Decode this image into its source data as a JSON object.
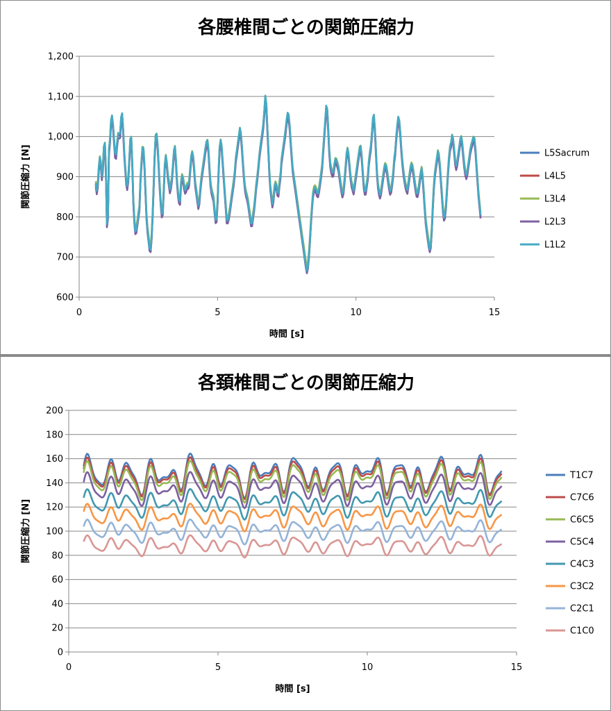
{
  "chart_data": [
    {
      "type": "line",
      "title": "各腰椎間ごとの関節圧縮力",
      "xlabel": "時間 [s]",
      "ylabel": "関節圧縮力 [N]",
      "xlim": [
        0,
        15
      ],
      "ylim": [
        600,
        1200
      ],
      "xticks": [
        "0",
        "5",
        "10",
        "15"
      ],
      "yticks": [
        "600",
        "700",
        "800",
        "900",
        "1,000",
        "1,100",
        "1,200"
      ],
      "grid": "horizontal",
      "legend_position": "right",
      "x_start": 0.6,
      "x_end": 14.5,
      "base_series": [
        880,
        860,
        880,
        930,
        950,
        920,
        880,
        960,
        985,
        970,
        780,
        770,
        960,
        990,
        1040,
        1050,
        1020,
        980,
        940,
        960,
        1000,
        1010,
        990,
        1040,
        1060,
        1020,
        960,
        920,
        880,
        870,
        900,
        960,
        1010,
        980,
        860,
        800,
        760,
        760,
        780,
        800,
        820,
        900,
        940,
        980,
        960,
        900,
        820,
        770,
        750,
        720,
        710,
        740,
        800,
        880,
        960,
        1010,
        1000,
        960,
        900,
        850,
        810,
        790,
        850,
        920,
        950,
        930,
        900,
        880,
        860,
        880,
        900,
        940,
        980,
        960,
        900,
        860,
        840,
        830,
        880,
        900,
        890,
        870,
        860,
        870,
        880,
        870,
        900,
        940,
        960,
        950,
        920,
        880,
        860,
        840,
        820,
        840,
        880,
        900,
        920,
        940,
        960,
        980,
        990,
        970,
        920,
        880,
        860,
        850,
        840,
        800,
        780,
        800,
        880,
        960,
        990,
        980,
        940,
        900,
        860,
        820,
        780,
        790,
        800,
        820,
        840,
        860,
        880,
        900,
        940,
        960,
        980,
        1000,
        1020,
        1000,
        960,
        920,
        880,
        860,
        850,
        840,
        820,
        800,
        780,
        780,
        800,
        820,
        850,
        880,
        900,
        930,
        960,
        980,
        1000,
        1020,
        1050,
        1100,
        1080,
        1020,
        960,
        900,
        860,
        840,
        820,
        860,
        880,
        880,
        860,
        850,
        880,
        900,
        940,
        960,
        980,
        1000,
        1020,
        1050,
        1060,
        1040,
        1000,
        960,
        920,
        900,
        880,
        860,
        840,
        820,
        800,
        780,
        760,
        740,
        720,
        700,
        680,
        660,
        670,
        700,
        740,
        790,
        830,
        860,
        870,
        870,
        860,
        850,
        860,
        880,
        900,
        920,
        960,
        1000,
        1040,
        1080,
        1060,
        1000,
        940,
        920,
        910,
        900,
        920,
        940,
        940,
        930,
        920,
        900,
        880,
        860,
        850,
        870,
        900,
        940,
        970,
        960,
        930,
        900,
        880,
        870,
        860,
        880,
        900,
        920,
        940,
        960,
        980,
        960,
        920,
        880,
        860,
        860,
        880,
        900,
        940,
        960,
        980,
        1020,
        1060,
        1040,
        980,
        920,
        880,
        860,
        850,
        860,
        880,
        900,
        920,
        930,
        920,
        900,
        880,
        860,
        860,
        880,
        900,
        940,
        960,
        1000,
        1030,
        1050,
        1030,
        990,
        950,
        920,
        900,
        880,
        870,
        860,
        880,
        900,
        920,
        930,
        920,
        900,
        880,
        860,
        850,
        860,
        880,
        900,
        920,
        900,
        860,
        820,
        780,
        760,
        740,
        720,
        710,
        740,
        800,
        860,
        900,
        920,
        940,
        960,
        950,
        920,
        880,
        840,
        800,
        790,
        810,
        850,
        900,
        940,
        970,
        980,
        1000,
        990,
        960,
        930,
        920,
        940,
        960,
        980,
        1000,
        990,
        960,
        930,
        910,
        900,
        910,
        930,
        950,
        970,
        980,
        990,
        1000,
        980,
        940,
        900,
        860,
        830,
        800
      ],
      "series": [
        {
          "name": "L5Sacrum",
          "color": "#4a7ebb",
          "offset": 0,
          "scale": 1.01
        },
        {
          "name": "L4L5",
          "color": "#be4b48",
          "offset": 2,
          "scale": 0.99
        },
        {
          "name": "L3L4",
          "color": "#98b954",
          "offset": 8,
          "scale": 0.97
        },
        {
          "name": "L2L3",
          "color": "#7d60a0",
          "offset": -6,
          "scale": 0.98
        },
        {
          "name": "L1L2",
          "color": "#46aac5",
          "offset": 4,
          "scale": 1.0
        }
      ]
    },
    {
      "type": "line",
      "title": "各頚椎間ごとの関節圧縮力",
      "xlabel": "時間 [s]",
      "ylabel": "関節圧縮力 [N]",
      "xlim": [
        0,
        15
      ],
      "ylim": [
        0,
        200
      ],
      "xticks": [
        "0",
        "5",
        "10",
        "15"
      ],
      "yticks": [
        "0",
        "20",
        "40",
        "60",
        "80",
        "100",
        "120",
        "140",
        "160",
        "180",
        "200"
      ],
      "grid": "horizontal",
      "legend_position": "right",
      "x_start": 0.5,
      "x_end": 14.5,
      "series": [
        {
          "name": "T1C7",
          "color": "#4a7ebb",
          "mean": 147,
          "amp": 16
        },
        {
          "name": "C7C6",
          "color": "#be4b48",
          "mean": 145,
          "amp": 15
        },
        {
          "name": "C6C5",
          "color": "#98b954",
          "mean": 142,
          "amp": 15
        },
        {
          "name": "C5C4",
          "color": "#7d60a0",
          "mean": 135,
          "amp": 13
        },
        {
          "name": "C4C3",
          "color": "#4198af",
          "mean": 123,
          "amp": 11
        },
        {
          "name": "C3C2",
          "color": "#f79646",
          "mean": 112,
          "amp": 10
        },
        {
          "name": "C2C1",
          "color": "#95b3d7",
          "mean": 100,
          "amp": 9
        },
        {
          "name": "C1C0",
          "color": "#d99694",
          "mean": 88,
          "amp": 8
        }
      ]
    }
  ]
}
